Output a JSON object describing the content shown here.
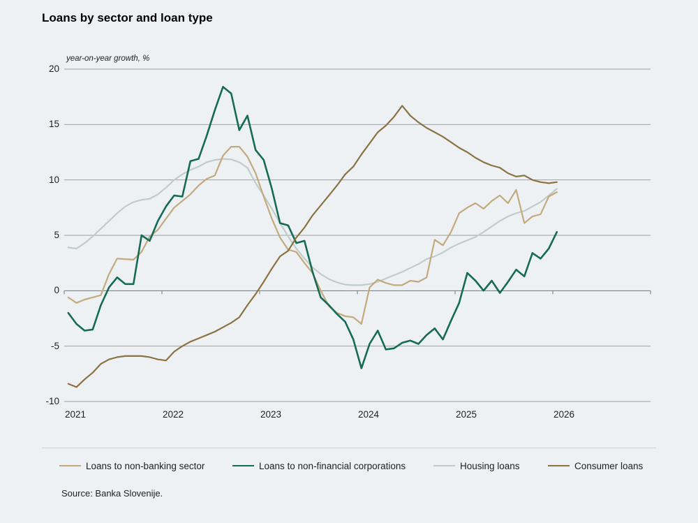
{
  "title": "Loans by sector and loan type",
  "subtitle": "year-on-year growth, %",
  "source": "Source: Banka Slovenije.",
  "colors": {
    "background": "#eef1f4",
    "gridline": "#9aa0a4",
    "zero_axis": "#71777b",
    "text": "#1f1f1f"
  },
  "chart_data": {
    "type": "line",
    "title": "Loans by sector and loan type",
    "subtitle": "year-on-year growth, %",
    "x_tick_labels": [
      "2021",
      "2022",
      "2023",
      "2024",
      "2025",
      "2026"
    ],
    "x_frequency": "monthly",
    "x_range": "Jan 2021 – Jan 2026",
    "y_ticks": [
      20,
      15,
      10,
      5,
      0,
      -5,
      -10
    ],
    "ylim": [
      -10,
      20
    ],
    "grid": "horizontal",
    "legend_position": "bottom",
    "series": [
      {
        "name": "Loans to non-banking sector",
        "color": "#c2aa7d",
        "values": [
          -0.6,
          -1.1,
          -0.8,
          -0.6,
          -0.4,
          1.5,
          2.9,
          2.85,
          2.8,
          3.5,
          4.9,
          5.5,
          6.5,
          7.5,
          8.1,
          8.7,
          9.5,
          10.1,
          10.4,
          12.2,
          13.0,
          13.0,
          12.1,
          10.6,
          8.5,
          6.5,
          4.8,
          3.7,
          3.5,
          2.5,
          1.6,
          0.0,
          -1.4,
          -2.0,
          -2.3,
          -2.4,
          -3.0,
          0.3,
          1.0,
          0.7,
          0.5,
          0.5,
          0.9,
          0.8,
          1.2,
          4.6,
          4.1,
          5.3,
          7.0,
          7.5,
          7.9,
          7.4,
          8.1,
          8.6,
          7.9,
          9.1,
          6.1,
          6.7,
          6.9,
          8.5,
          8.9
        ]
      },
      {
        "name": "Loans to non-financial corporations",
        "color": "#156b54",
        "values": [
          -2.0,
          -3.0,
          -3.6,
          -3.5,
          -1.3,
          0.3,
          1.2,
          0.6,
          0.6,
          5.0,
          4.5,
          6.3,
          7.6,
          8.6,
          8.5,
          11.7,
          11.9,
          14.0,
          16.3,
          18.4,
          17.8,
          14.5,
          15.8,
          12.7,
          11.8,
          9.2,
          6.1,
          5.9,
          4.3,
          4.5,
          1.7,
          -0.6,
          -1.3,
          -2.1,
          -2.8,
          -4.4,
          -7.0,
          -4.8,
          -3.6,
          -5.3,
          -5.2,
          -4.7,
          -4.5,
          -4.8,
          -4.0,
          -3.4,
          -4.4,
          -2.7,
          -1.1,
          1.6,
          0.9,
          0.0,
          0.9,
          -0.2,
          0.8,
          1.9,
          1.3,
          3.4,
          2.9,
          3.8,
          5.3
        ]
      },
      {
        "name": "Housing loans",
        "color": "#bfcdc7",
        "values": [
          3.9,
          3.8,
          4.3,
          4.9,
          5.6,
          6.3,
          7.0,
          7.6,
          8.0,
          8.2,
          8.3,
          8.7,
          9.3,
          10.0,
          10.5,
          10.9,
          11.2,
          11.6,
          11.8,
          11.9,
          11.85,
          11.6,
          11.1,
          9.7,
          8.6,
          7.4,
          6.1,
          4.9,
          3.8,
          2.9,
          2.1,
          1.5,
          1.05,
          0.75,
          0.55,
          0.5,
          0.5,
          0.6,
          0.8,
          1.1,
          1.4,
          1.7,
          2.05,
          2.4,
          2.85,
          3.1,
          3.45,
          3.9,
          4.25,
          4.55,
          4.85,
          5.3,
          5.8,
          6.3,
          6.7,
          7.0,
          7.2,
          7.6,
          8.0,
          8.6,
          9.2
        ]
      },
      {
        "name": "Consumer loans",
        "color": "#8b7243",
        "values": [
          -8.4,
          -8.7,
          -8.0,
          -7.4,
          -6.6,
          -6.2,
          -6.0,
          -5.9,
          -5.9,
          -5.9,
          -6.0,
          -6.2,
          -6.3,
          -5.5,
          -5.0,
          -4.6,
          -4.3,
          -4.0,
          -3.7,
          -3.3,
          -2.9,
          -2.4,
          -1.3,
          -0.3,
          0.8,
          2.0,
          3.1,
          3.6,
          4.8,
          5.7,
          6.8,
          7.7,
          8.6,
          9.5,
          10.5,
          11.2,
          12.3,
          13.3,
          14.3,
          14.9,
          15.7,
          16.7,
          15.8,
          15.2,
          14.7,
          14.3,
          13.9,
          13.4,
          12.9,
          12.5,
          12.0,
          11.6,
          11.3,
          11.1,
          10.6,
          10.3,
          10.4,
          10.0,
          9.8,
          9.7,
          9.8
        ]
      }
    ]
  }
}
